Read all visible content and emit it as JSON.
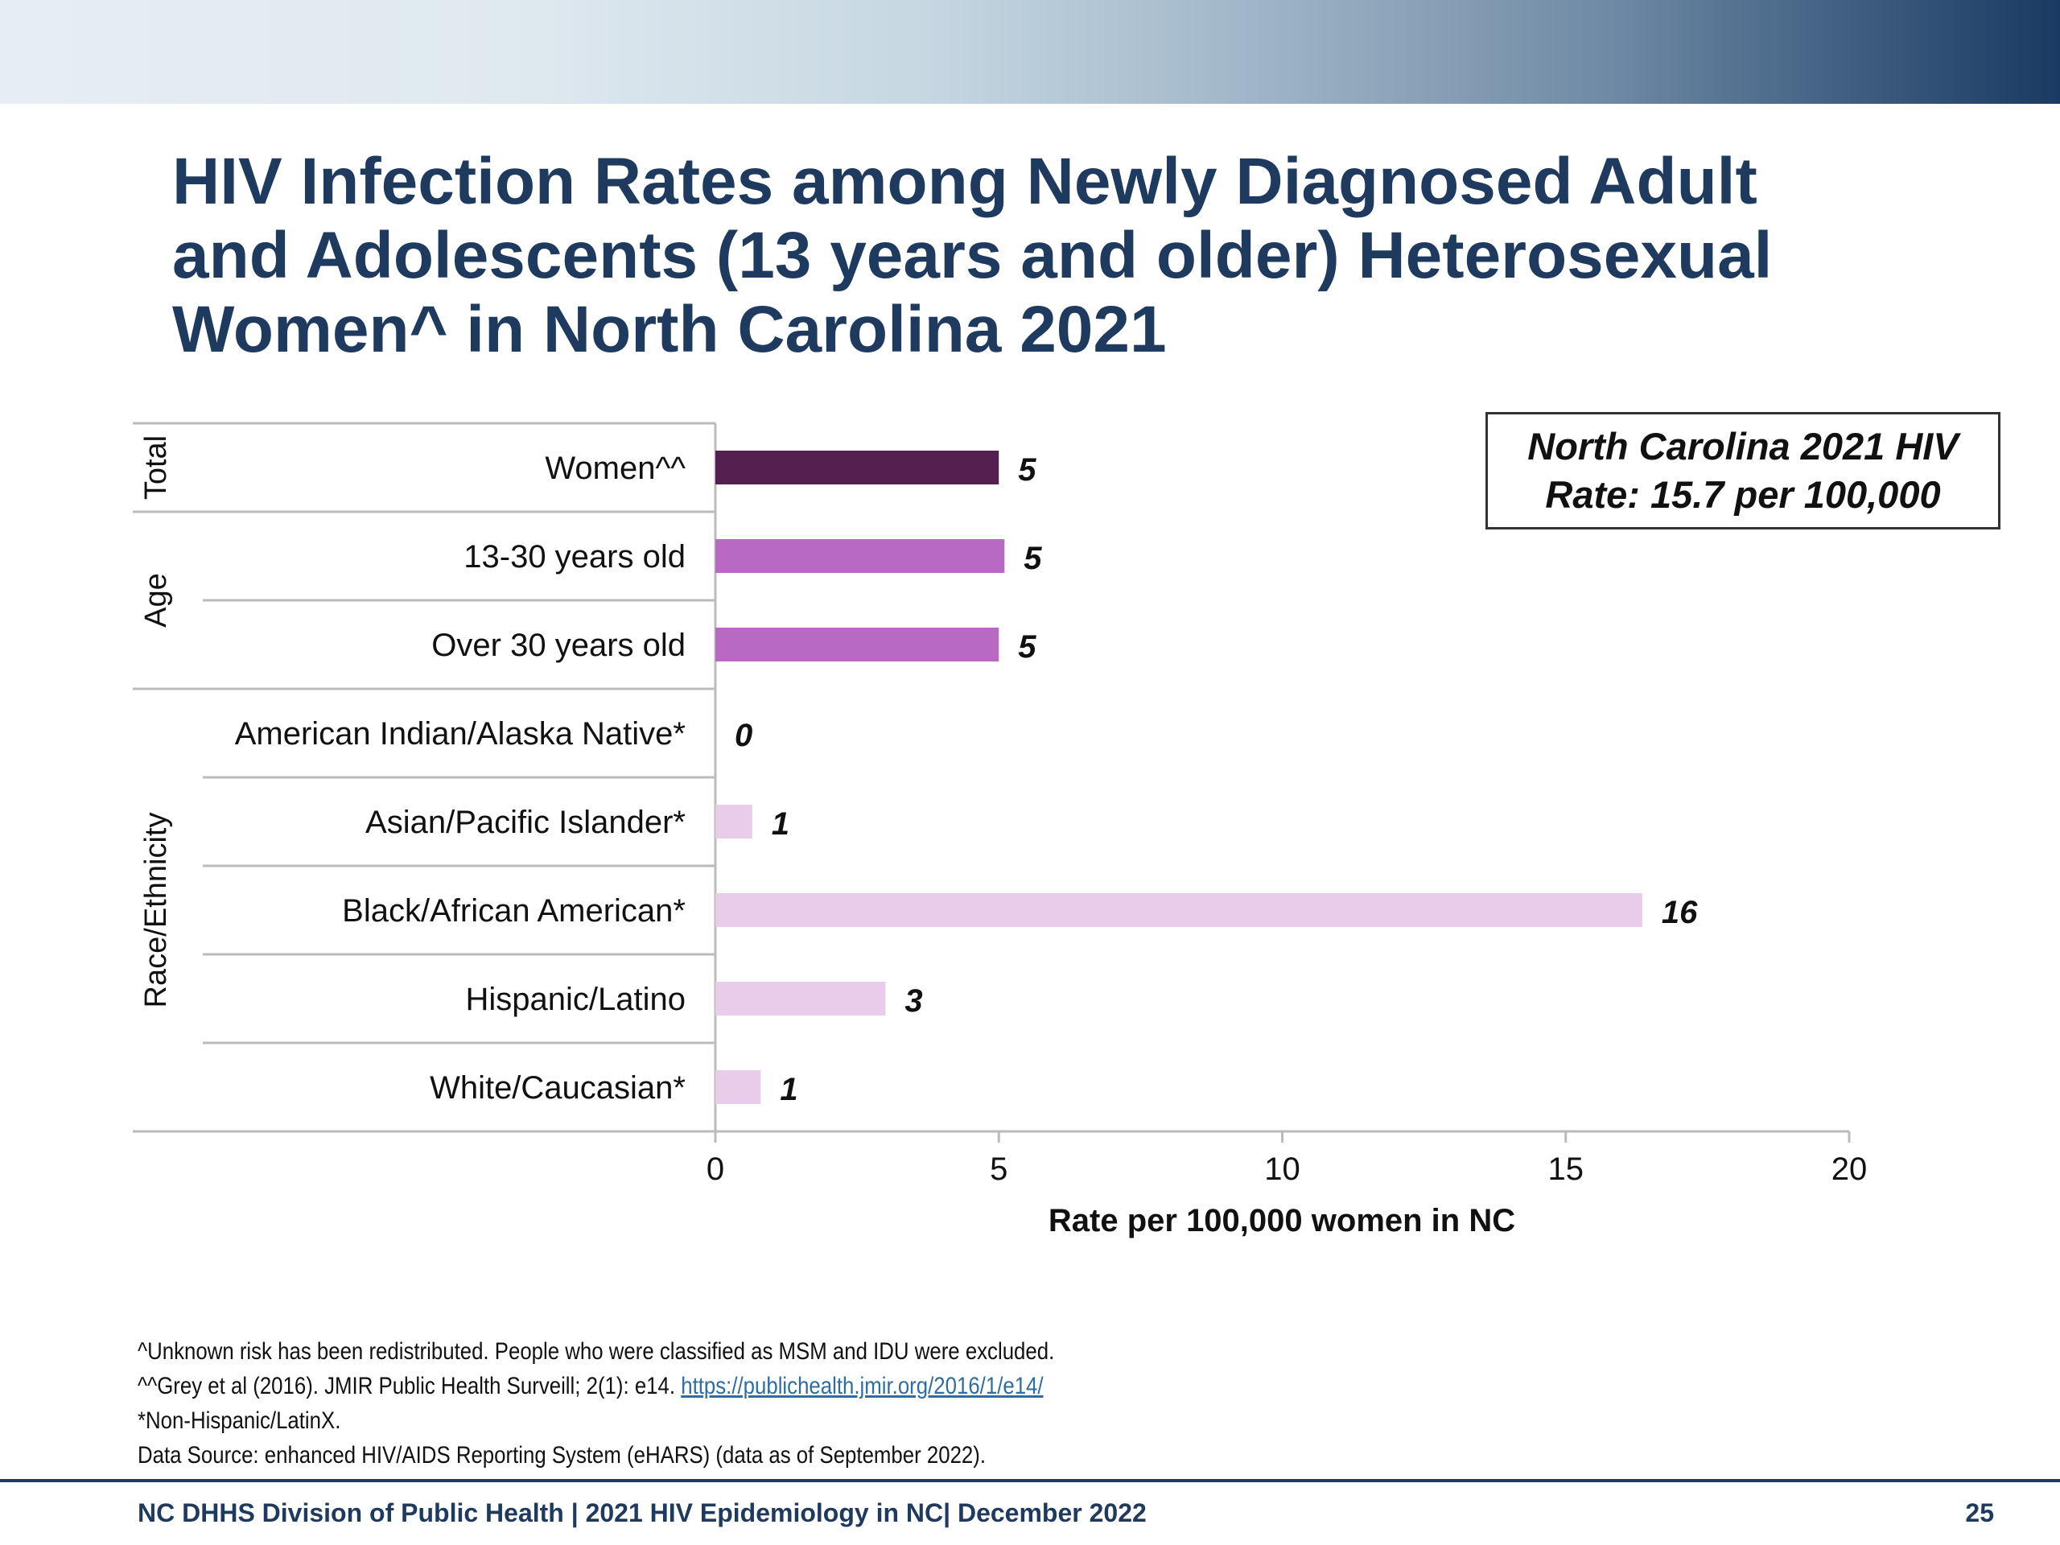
{
  "header": {
    "title_lines": [
      "HIV Infection Rates among Newly Diagnosed Adult",
      "and Adolescents (13 years and older) Heterosexual",
      "Women^ in North Carolina 2021"
    ]
  },
  "chart_data": {
    "type": "bar",
    "orientation": "horizontal",
    "groups": [
      {
        "name": "Total",
        "categories": [
          "Women^^"
        ]
      },
      {
        "name": "Age",
        "categories": [
          "13-30 years old",
          "Over 30 years old"
        ]
      },
      {
        "name": "Race/Ethnicity",
        "categories": [
          "American Indian/Alaska Native*",
          "Asian/Pacific Islander*",
          "Black/African American*",
          "Hispanic/Latino",
          "White/Caucasian*"
        ]
      }
    ],
    "categories": [
      "Women^^",
      "13-30 years old",
      "Over 30 years old",
      "American Indian/Alaska Native*",
      "Asian/Pacific Islander*",
      "Black/African American*",
      "Hispanic/Latino",
      "White/Caucasian*"
    ],
    "values": [
      5.0,
      5.1,
      5.0,
      0.0,
      0.65,
      16.35,
      3.0,
      0.8
    ],
    "data_labels": [
      "5",
      "5",
      "5",
      "0",
      "1",
      "16",
      "3",
      "1"
    ],
    "bar_colors": [
      "#55204f",
      "#b86ac3",
      "#b86ac3",
      "#e8cce9",
      "#e8cce9",
      "#e8cce9",
      "#e8cce9",
      "#e8cce9"
    ],
    "xlabel": "Rate per 100,000 women in NC",
    "xlim": [
      0,
      20
    ],
    "xticks": [
      "0",
      "5",
      "10",
      "15",
      "20"
    ],
    "grid": false,
    "callout": {
      "line1": "North Carolina 2021 HIV",
      "line2": "Rate: 15.7 per 100,000"
    }
  },
  "footnotes": {
    "line1": "^Unknown risk has been redistributed. People who were classified as MSM and IDU were excluded.",
    "line2_text": "^^Grey et al (2016). JMIR Public Health Surveill; 2(1): e14. ",
    "line2_link": "https://publichealth.jmir.org/2016/1/e14/",
    "line3": "*Non-Hispanic/LatinX.",
    "line4": "Data Source: enhanced HIV/AIDS Reporting System (eHARS) (data as of September 2022)."
  },
  "footer": {
    "text": "NC DHHS Division of Public Health | 2021 HIV Epidemiology in NC| December 2022",
    "page_number": "25"
  },
  "colors": {
    "title": "#1f3a5f",
    "banner_dark": "#1a3a63"
  }
}
